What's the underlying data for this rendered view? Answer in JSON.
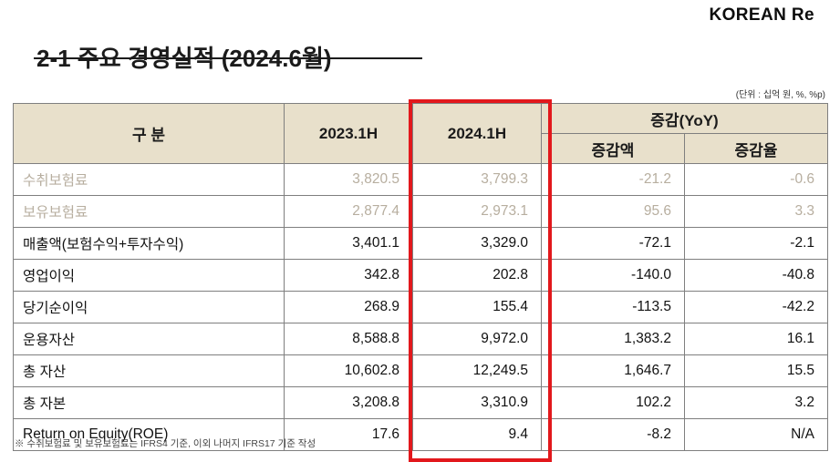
{
  "logo": {
    "text": "KOREAN Re"
  },
  "title": "2-1 주요 경영실적 (2024.6월)",
  "unit_note": "(단위 : 십억 원, %, %p)",
  "table": {
    "headers": {
      "category": "구 분",
      "col_2023": "2023.1H",
      "col_2024": "2024.1H",
      "yoy_group": "증감(YoY)",
      "yoy_amount": "증감액",
      "yoy_rate": "증감율"
    },
    "rows": [
      {
        "label": "수취보험료",
        "v2023": "3,820.5",
        "v2024": "3,799.3",
        "delta": "-21.2",
        "rate": "-0.6"
      },
      {
        "label": "보유보험료",
        "v2023": "2,877.4",
        "v2024": "2,973.1",
        "delta": "95.6",
        "rate": "3.3"
      },
      {
        "label": "매출액(보험수익+투자수익)",
        "v2023": "3,401.1",
        "v2024": "3,329.0",
        "delta": "-72.1",
        "rate": "-2.1"
      },
      {
        "label": "영업이익",
        "v2023": "342.8",
        "v2024": "202.8",
        "delta": "-140.0",
        "rate": "-40.8"
      },
      {
        "label": "당기순이익",
        "v2023": "268.9",
        "v2024": "155.4",
        "delta": "-113.5",
        "rate": "-42.2"
      },
      {
        "label": "운용자산",
        "v2023": "8,588.8",
        "v2024": "9,972.0",
        "delta": "1,383.2",
        "rate": "16.1"
      },
      {
        "label": "총 자산",
        "v2023": "10,602.8",
        "v2024": "12,249.5",
        "delta": "1,646.7",
        "rate": "15.5"
      },
      {
        "label": "총 자본",
        "v2023": "3,208.8",
        "v2024": "3,310.9",
        "delta": "102.2",
        "rate": "3.2"
      },
      {
        "label": "Return on Equity(ROE)",
        "v2023": "17.6",
        "v2024": "9.4",
        "delta": "-8.2",
        "rate": "N/A"
      }
    ]
  },
  "footnote": "※ 수취보험료 및 보유보험료는 IFRS4 기준, 이외 나머지 IFRS17 기준 작성",
  "colors": {
    "header_bg": "#e8e0cb",
    "highlight_border": "#e2181c",
    "muted_text": "#b7ae9f"
  }
}
